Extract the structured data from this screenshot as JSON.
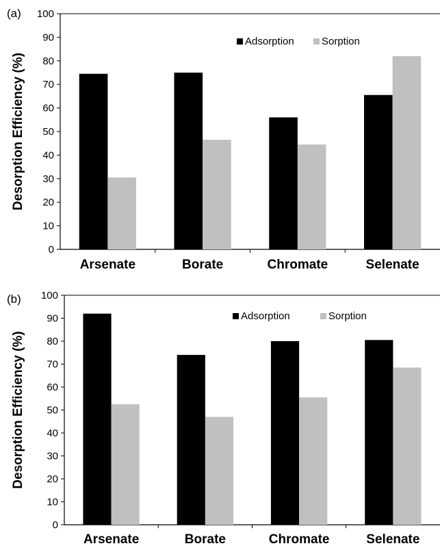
{
  "chart_data": [
    {
      "type": "bar",
      "panel_label": "(a)",
      "categories": [
        "Arsenate",
        "Borate",
        "Chromate",
        "Selenate"
      ],
      "series": [
        {
          "name": "Adsorption",
          "color": "#000000",
          "values": [
            74.5,
            75,
            56,
            65.5
          ]
        },
        {
          "name": "Sorption",
          "color": "#c0c0c0",
          "values": [
            30.5,
            46.5,
            44.5,
            82
          ]
        }
      ],
      "ylabel": "Desorption Efficiency (%)",
      "ylim": [
        0,
        100
      ],
      "yticks": [
        "0",
        "10",
        "20",
        "30",
        "40",
        "50",
        "60",
        "70",
        "80",
        "90",
        "100"
      ],
      "grid": false,
      "legend_position": "top-right"
    },
    {
      "type": "bar",
      "panel_label": "(b)",
      "categories": [
        "Arsenate",
        "Borate",
        "Chromate",
        "Selenate"
      ],
      "series": [
        {
          "name": "Adsorption",
          "color": "#000000",
          "values": [
            92,
            74,
            80,
            80.5
          ]
        },
        {
          "name": "Sorption",
          "color": "#c0c0c0",
          "values": [
            52.5,
            47,
            55.5,
            68.5
          ]
        }
      ],
      "ylabel": "Desorption Efficiency (%)",
      "ylim": [
        0,
        100
      ],
      "yticks": [
        "0",
        "10",
        "20",
        "30",
        "40",
        "50",
        "60",
        "70",
        "80",
        "90",
        "100"
      ],
      "grid": false,
      "legend_position": "top-right"
    }
  ]
}
